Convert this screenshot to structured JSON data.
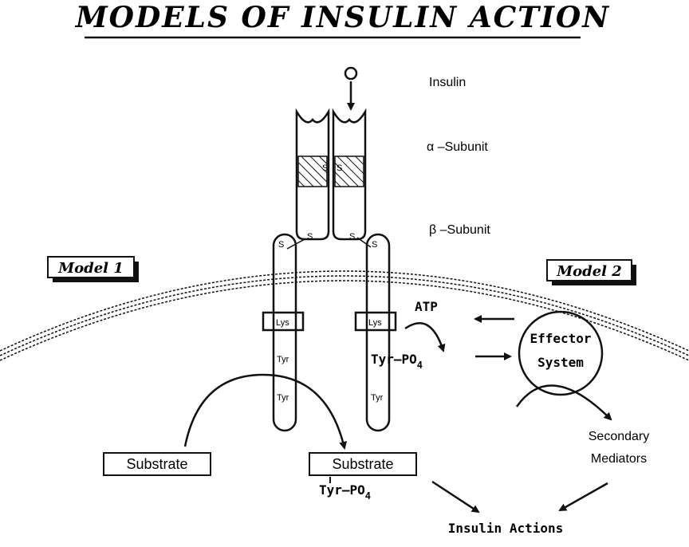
{
  "title": "MODELS OF INSULIN ACTION",
  "labels": {
    "insulin": "Insulin",
    "alpha_subunit": "α –Subunit",
    "beta_subunit": "β –Subunit",
    "atp": "ATP",
    "effector_line1": "Effector",
    "effector_line2": "System",
    "secondary_line1": "Secondary",
    "secondary_line2": "Mediators",
    "insulin_actions": "Insulin Actions",
    "tyr_po4_left": "Tyr–PO",
    "tyr_po4_bottom": "Tyr–PO",
    "subscript_4": "4"
  },
  "models": {
    "model1": "Model 1",
    "model2": "Model 2"
  },
  "boxes": {
    "substrate_left": "Substrate",
    "substrate_right": "Substrate"
  },
  "receptor": {
    "lys": "Lys",
    "tyr": "Tyr",
    "s": "S"
  }
}
